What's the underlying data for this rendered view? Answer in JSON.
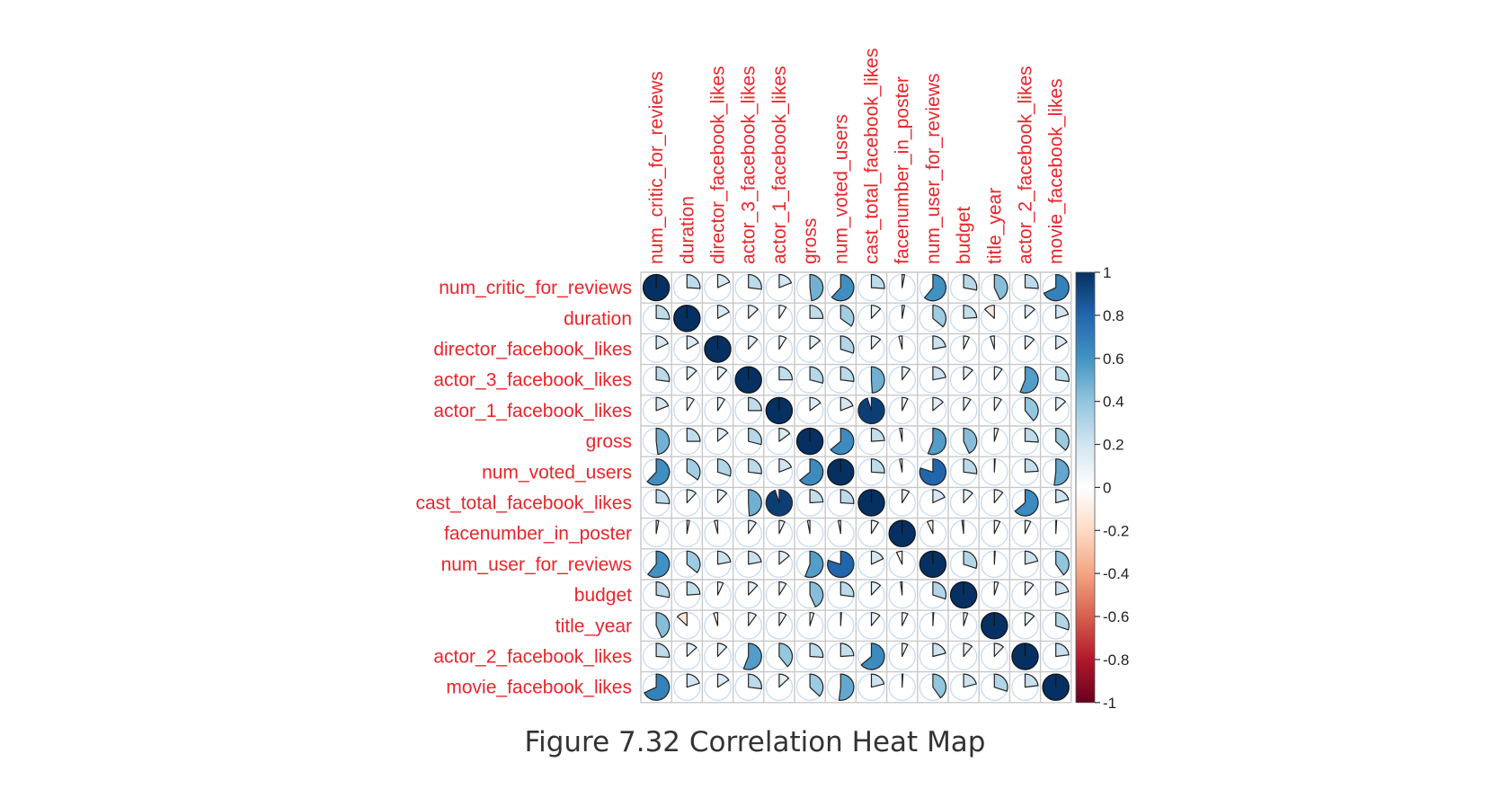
{
  "chart_data": {
    "type": "heatmap",
    "style": "corrplot pie",
    "variables": [
      "num_critic_for_reviews",
      "duration",
      "director_facebook_likes",
      "actor_3_facebook_likes",
      "actor_1_facebook_likes",
      "gross",
      "num_voted_users",
      "cast_total_facebook_likes",
      "facenumber_in_poster",
      "num_user_for_reviews",
      "budget",
      "title_year",
      "actor_2_facebook_likes",
      "movie_facebook_likes"
    ],
    "matrix": [
      [
        1.0,
        0.26,
        0.18,
        0.27,
        0.19,
        0.48,
        0.62,
        0.26,
        0.03,
        0.61,
        0.28,
        0.43,
        0.26,
        0.68
      ],
      [
        0.26,
        1.0,
        0.17,
        0.13,
        0.09,
        0.25,
        0.35,
        0.12,
        0.03,
        0.36,
        0.24,
        -0.13,
        0.13,
        0.2
      ],
      [
        0.18,
        0.17,
        1.0,
        0.12,
        0.09,
        0.14,
        0.3,
        0.12,
        -0.04,
        0.22,
        0.07,
        -0.05,
        0.12,
        0.16
      ],
      [
        0.27,
        0.13,
        0.12,
        1.0,
        0.25,
        0.29,
        0.27,
        0.49,
        0.1,
        0.22,
        0.12,
        0.1,
        0.56,
        0.27
      ],
      [
        0.19,
        0.09,
        0.09,
        0.25,
        1.0,
        0.15,
        0.19,
        0.95,
        0.07,
        0.14,
        0.09,
        0.09,
        0.39,
        0.13
      ],
      [
        0.48,
        0.25,
        0.14,
        0.29,
        0.15,
        1.0,
        0.64,
        0.24,
        -0.03,
        0.56,
        0.43,
        0.05,
        0.26,
        0.37
      ],
      [
        0.62,
        0.35,
        0.3,
        0.27,
        0.19,
        0.64,
        1.0,
        0.26,
        -0.03,
        0.8,
        0.27,
        0.01,
        0.24,
        0.52
      ],
      [
        0.26,
        0.12,
        0.12,
        0.49,
        0.95,
        0.24,
        0.26,
        1.0,
        0.09,
        0.18,
        0.12,
        0.11,
        0.64,
        0.21
      ],
      [
        0.03,
        0.03,
        -0.04,
        0.1,
        0.07,
        -0.03,
        -0.03,
        0.09,
        1.0,
        -0.07,
        -0.02,
        0.07,
        0.07,
        0.01
      ],
      [
        0.61,
        0.36,
        0.22,
        0.22,
        0.14,
        0.56,
        0.8,
        0.18,
        -0.07,
        1.0,
        0.3,
        0.01,
        0.21,
        0.4
      ],
      [
        0.28,
        0.24,
        0.07,
        0.12,
        0.09,
        0.43,
        0.27,
        0.12,
        -0.02,
        0.3,
        1.0,
        0.05,
        0.11,
        0.21
      ],
      [
        0.43,
        -0.13,
        -0.05,
        0.1,
        0.09,
        0.05,
        0.01,
        0.11,
        0.07,
        0.01,
        0.05,
        1.0,
        0.12,
        0.3
      ],
      [
        0.26,
        0.13,
        0.12,
        0.56,
        0.39,
        0.26,
        0.24,
        0.64,
        0.07,
        0.21,
        0.11,
        0.12,
        1.0,
        0.23
      ],
      [
        0.68,
        0.2,
        0.16,
        0.27,
        0.13,
        0.37,
        0.52,
        0.21,
        0.01,
        0.4,
        0.21,
        0.3,
        0.23,
        1.0
      ]
    ],
    "colorbar": {
      "range": [
        -1,
        1
      ],
      "ticks": [
        "1",
        "0.8",
        "0.6",
        "0.4",
        "0.2",
        "0",
        "-0.2",
        "-0.4",
        "-0.6",
        "-0.8",
        "-1"
      ],
      "colors": [
        "#67001f",
        "#b2182b",
        "#d6604d",
        "#f4a582",
        "#fddbc7",
        "#ffffff",
        "#d1e5f0",
        "#92c5de",
        "#4393c3",
        "#2166ac",
        "#053061"
      ]
    },
    "label_color": "#e8262b",
    "legend_position": "right"
  },
  "caption": "Figure 7.32 Correlation Heat Map"
}
